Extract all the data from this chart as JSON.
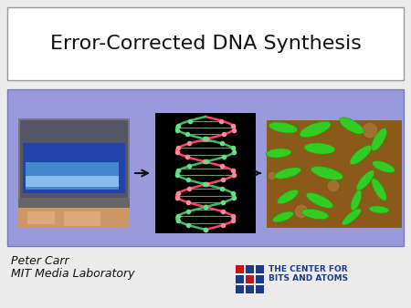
{
  "title": "Error-Corrected DNA Synthesis",
  "title_fontsize": 16,
  "author_line1": "Peter Carr",
  "author_line2": "MIT Media Laboratory",
  "author_fontsize": 9,
  "bg_color": "#ececec",
  "title_box_color": "#ffffff",
  "title_box_edge": "#999999",
  "content_box_color": "#9999dd",
  "content_box_edge": "#7777bb",
  "arrow_color": "#111111",
  "logo_text_color": "#1a3a8a"
}
